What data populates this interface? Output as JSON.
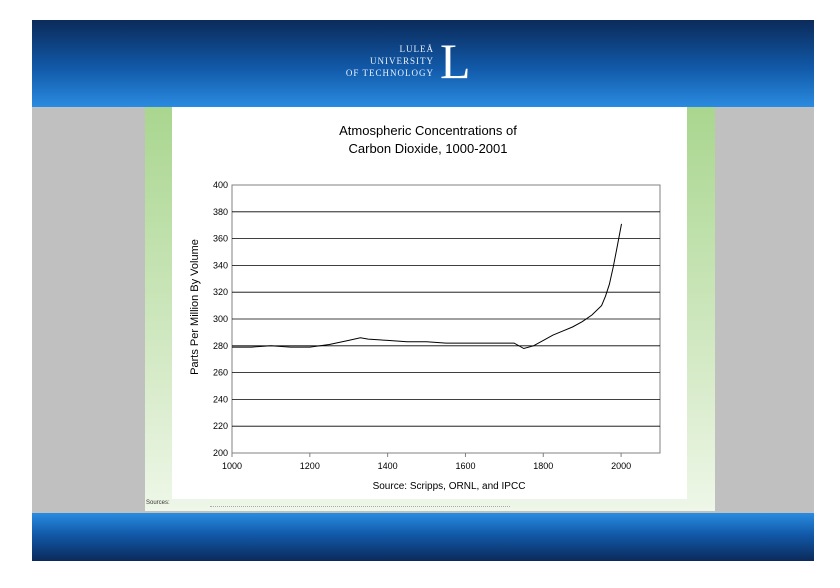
{
  "logo": {
    "line1": "LULEÅ",
    "line2": "UNIVERSITY",
    "line3": "OF TECHNOLOGY",
    "letter": "L"
  },
  "footnote": {
    "sources_label": "Sources:"
  },
  "colors": {
    "header_dark": "#0b2a5a",
    "header_light": "#2a8be0",
    "panel_green": "#a9d68f",
    "side_grey": "#c0c0c0",
    "line": "#000000"
  },
  "chart_data": {
    "type": "line",
    "title_line1": "Atmospheric Concentrations of",
    "title_line2": "Carbon Dioxide, 1000-2001",
    "ylabel": "Parts Per Million By Volume",
    "xlabel": "Source: Scripps, ORNL, and IPCC",
    "xlim": [
      1000,
      2100
    ],
    "ylim": [
      200,
      400
    ],
    "x_ticks": [
      1000,
      1200,
      1400,
      1600,
      1800,
      2000
    ],
    "x_tick_labels": [
      "1000",
      "1200",
      "1400",
      "1600",
      "1800",
      "2000"
    ],
    "y_ticks": [
      200,
      220,
      240,
      260,
      280,
      300,
      320,
      340,
      360,
      380,
      400
    ],
    "y_tick_labels": [
      "200",
      "220",
      "240",
      "260",
      "280",
      "300",
      "320",
      "340",
      "360",
      "380",
      "400"
    ],
    "grid": true,
    "series": [
      {
        "x": [
          1000,
          1050,
          1100,
          1150,
          1200,
          1250,
          1300,
          1330,
          1350,
          1400,
          1450,
          1500,
          1550,
          1600,
          1650,
          1700,
          1725,
          1750,
          1775,
          1800,
          1825,
          1850,
          1875,
          1900,
          1925,
          1950,
          1960,
          1970,
          1980,
          1990,
          2001
        ],
        "y": [
          279,
          279,
          280,
          279,
          279,
          281,
          284,
          286,
          285,
          284,
          283,
          283,
          282,
          282,
          282,
          282,
          282,
          278,
          280,
          284,
          288,
          291,
          294,
          298,
          303,
          310,
          317,
          326,
          339,
          354,
          371
        ]
      }
    ]
  }
}
